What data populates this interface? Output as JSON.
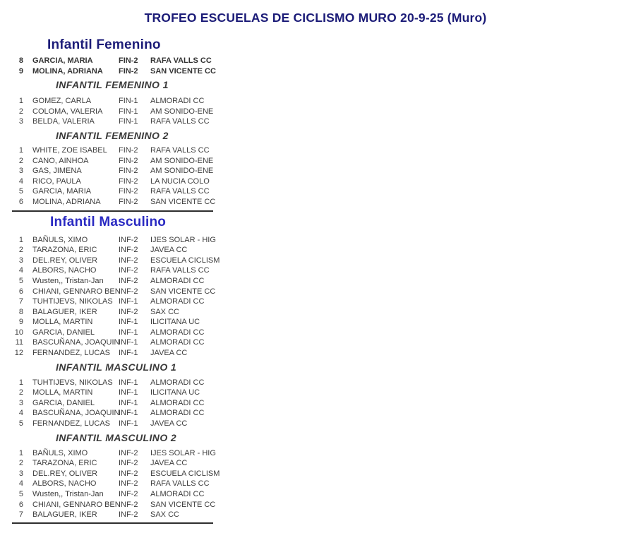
{
  "page": {
    "title": "TROFEO ESCUELAS DE CICLISMO MURO 20-9-25 (Muro)"
  },
  "colors": {
    "title_navy": "#1c1c78",
    "femenino_heading": "#1c1c78",
    "masculino_heading": "#2a2ac2",
    "subsection_heading": "#3a3a3a",
    "row_text": "#3d3d3d",
    "divider": "#2e2e2e"
  },
  "sections": [
    {
      "heading": "Infantil Femenino",
      "pre_rows": [
        {
          "pos": "8",
          "name": "GARCIA, MARIA",
          "cat": "FIN-2",
          "club": "RAFA VALLS CC"
        },
        {
          "pos": "9",
          "name": "MOLINA, ADRIANA",
          "cat": "FIN-2",
          "club": "SAN VICENTE CC"
        }
      ],
      "subsections": [
        {
          "heading": "INFANTIL FEMENINO 1",
          "rows": [
            {
              "pos": "1",
              "name": "GOMEZ, CARLA",
              "cat": "FIN-1",
              "club": "ALMORADI CC"
            },
            {
              "pos": "2",
              "name": "COLOMA, VALERIA",
              "cat": "FIN-1",
              "club": "AM SONIDO-ENE"
            },
            {
              "pos": "3",
              "name": "BELDA, VALERIA",
              "cat": "FIN-1",
              "club": "RAFA VALLS CC"
            }
          ]
        },
        {
          "heading": "INFANTIL FEMENINO 2",
          "rows": [
            {
              "pos": "1",
              "name": "WHITE, ZOE ISABEL",
              "cat": "FIN-2",
              "club": "RAFA VALLS CC"
            },
            {
              "pos": "2",
              "name": "CANO, AINHOA",
              "cat": "FIN-2",
              "club": "AM SONIDO-ENE"
            },
            {
              "pos": "3",
              "name": "GAS, JIMENA",
              "cat": "FIN-2",
              "club": "AM SONIDO-ENE"
            },
            {
              "pos": "4",
              "name": "RICO, PAULA",
              "cat": "FIN-2",
              "club": "LA NUCIA COLO"
            },
            {
              "pos": "5",
              "name": "GARCIA, MARIA",
              "cat": "FIN-2",
              "club": "RAFA VALLS CC"
            },
            {
              "pos": "6",
              "name": "MOLINA, ADRIANA",
              "cat": "FIN-2",
              "club": "SAN VICENTE CC"
            }
          ]
        }
      ]
    },
    {
      "heading": "Infantil Masculino",
      "pre_rows": [
        {
          "pos": "1",
          "name": "BAÑULS, XIMO",
          "cat": "INF-2",
          "club": "IJES SOLAR - HIG"
        },
        {
          "pos": "2",
          "name": "TARAZONA, ERIC",
          "cat": "INF-2",
          "club": "JAVEA CC"
        },
        {
          "pos": "3",
          "name": "DEL.REY, OLIVER",
          "cat": "INF-2",
          "club": "ESCUELA CICLISM"
        },
        {
          "pos": "4",
          "name": "ALBORS, NACHO",
          "cat": "INF-2",
          "club": "RAFA VALLS CC"
        },
        {
          "pos": "5",
          "name": "Wusten,, Tristan-Jan",
          "cat": "INF-2",
          "club": "ALMORADI CC"
        },
        {
          "pos": "6",
          "name": "CHIANI, GENNARO BEN",
          "cat": "INF-2",
          "club": "SAN VICENTE CC"
        },
        {
          "pos": "7",
          "name": "TUHTIJEVS, NIKOLAS",
          "cat": "INF-1",
          "club": "ALMORADI CC"
        },
        {
          "pos": "8",
          "name": "BALAGUER, IKER",
          "cat": "INF-2",
          "club": "SAX CC"
        },
        {
          "pos": "9",
          "name": "MOLLA, MARTIN",
          "cat": "INF-1",
          "club": "ILICITANA UC"
        },
        {
          "pos": "10",
          "name": "GARCIA, DANIEL",
          "cat": "INF-1",
          "club": "ALMORADI CC"
        },
        {
          "pos": "11",
          "name": "BASCUÑANA, JOAQUIN",
          "cat": "INF-1",
          "club": "ALMORADI CC"
        },
        {
          "pos": "12",
          "name": "FERNANDEZ, LUCAS",
          "cat": "INF-1",
          "club": "JAVEA CC"
        }
      ],
      "subsections": [
        {
          "heading": "INFANTIL MASCULINO 1",
          "rows": [
            {
              "pos": "1",
              "name": "TUHTIJEVS, NIKOLAS",
              "cat": "INF-1",
              "club": "ALMORADI CC"
            },
            {
              "pos": "2",
              "name": "MOLLA, MARTIN",
              "cat": "INF-1",
              "club": "ILICITANA UC"
            },
            {
              "pos": "3",
              "name": "GARCIA, DANIEL",
              "cat": "INF-1",
              "club": "ALMORADI CC"
            },
            {
              "pos": "4",
              "name": "BASCUÑANA, JOAQUIN",
              "cat": "INF-1",
              "club": "ALMORADI CC"
            },
            {
              "pos": "5",
              "name": "FERNANDEZ, LUCAS",
              "cat": "INF-1",
              "club": "JAVEA CC"
            }
          ]
        },
        {
          "heading": "INFANTIL MASCULINO 2",
          "rows": [
            {
              "pos": "1",
              "name": "BAÑULS, XIMO",
              "cat": "INF-2",
              "club": "IJES SOLAR - HIG"
            },
            {
              "pos": "2",
              "name": "TARAZONA, ERIC",
              "cat": "INF-2",
              "club": "JAVEA CC"
            },
            {
              "pos": "3",
              "name": "DEL.REY, OLIVER",
              "cat": "INF-2",
              "club": "ESCUELA CICLISM"
            },
            {
              "pos": "4",
              "name": "ALBORS, NACHO",
              "cat": "INF-2",
              "club": "RAFA VALLS CC"
            },
            {
              "pos": "5",
              "name": "Wusten,, Tristan-Jan",
              "cat": "INF-2",
              "club": "ALMORADI CC"
            },
            {
              "pos": "6",
              "name": "CHIANI, GENNARO BEN",
              "cat": "INF-2",
              "club": "SAN VICENTE CC"
            },
            {
              "pos": "7",
              "name": "BALAGUER, IKER",
              "cat": "INF-2",
              "club": "SAX CC"
            }
          ]
        }
      ]
    }
  ]
}
